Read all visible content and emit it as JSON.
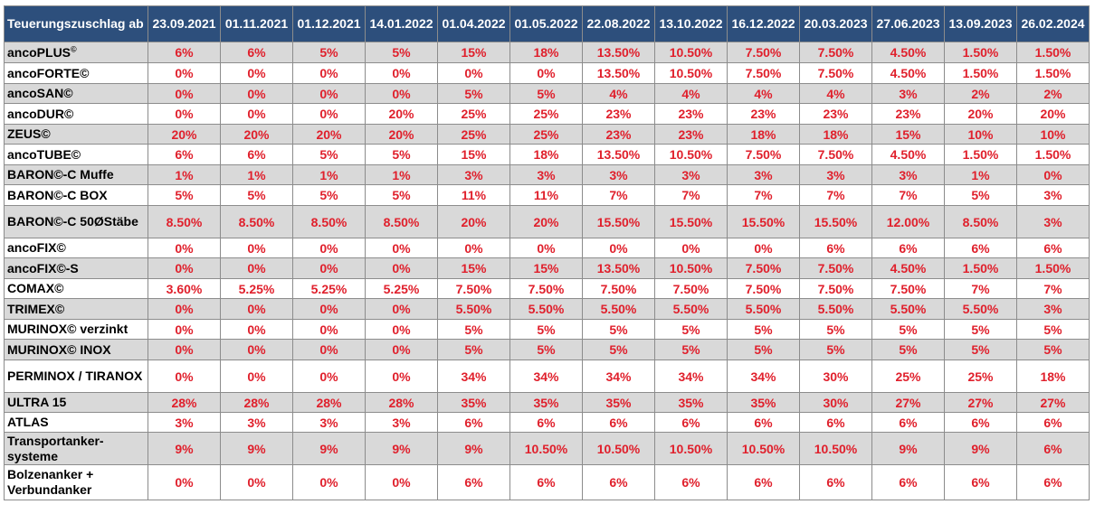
{
  "table": {
    "corner_label": "Teuerungszuschlag ab",
    "dates": [
      "23.09.2021",
      "01.11.2021",
      "01.12.2021",
      "14.01.2022",
      "01.04.2022",
      "01.05.2022",
      "22.08.2022",
      "13.10.2022",
      "16.12.2022",
      "20.03.2023",
      "27.06.2023",
      "13.09.2023",
      "26.02.2024"
    ],
    "rows": [
      {
        "product": "ancoPLUS",
        "mark": "©",
        "values": [
          "6%",
          "6%",
          "5%",
          "5%",
          "15%",
          "18%",
          "13.50%",
          "10.50%",
          "7.50%",
          "7.50%",
          "4.50%",
          "1.50%",
          "1.50%"
        ]
      },
      {
        "product": "ancoFORTE©",
        "values": [
          "0%",
          "0%",
          "0%",
          "0%",
          "0%",
          "0%",
          "13.50%",
          "10.50%",
          "7.50%",
          "7.50%",
          "4.50%",
          "1.50%",
          "1.50%"
        ]
      },
      {
        "product": "ancoSAN©",
        "values": [
          "0%",
          "0%",
          "0%",
          "0%",
          "5%",
          "5%",
          "4%",
          "4%",
          "4%",
          "4%",
          "3%",
          "2%",
          "2%"
        ]
      },
      {
        "product": "ancoDUR©",
        "values": [
          "0%",
          "0%",
          "0%",
          "20%",
          "25%",
          "25%",
          "23%",
          "23%",
          "23%",
          "23%",
          "23%",
          "20%",
          "20%"
        ]
      },
      {
        "product": "ZEUS©",
        "values": [
          "20%",
          "20%",
          "20%",
          "20%",
          "25%",
          "25%",
          "23%",
          "23%",
          "18%",
          "18%",
          "15%",
          "10%",
          "10%"
        ]
      },
      {
        "product": "ancoTUBE©",
        "values": [
          "6%",
          "6%",
          "5%",
          "5%",
          "15%",
          "18%",
          "13.50%",
          "10.50%",
          "7.50%",
          "7.50%",
          "4.50%",
          "1.50%",
          "1.50%"
        ]
      },
      {
        "product": "BARON©-C Muffe",
        "values": [
          "1%",
          "1%",
          "1%",
          "1%",
          "3%",
          "3%",
          "3%",
          "3%",
          "3%",
          "3%",
          "3%",
          "1%",
          "0%"
        ]
      },
      {
        "product": "BARON©-C BOX",
        "values": [
          "5%",
          "5%",
          "5%",
          "5%",
          "11%",
          "11%",
          "7%",
          "7%",
          "7%",
          "7%",
          "7%",
          "5%",
          "3%"
        ]
      },
      {
        "product": "BARON©-C 50ØStäbe",
        "values": [
          "8.50%",
          "8.50%",
          "8.50%",
          "8.50%",
          "20%",
          "20%",
          "15.50%",
          "15.50%",
          "15.50%",
          "15.50%",
          "12.00%",
          "8.50%",
          "3%"
        ]
      },
      {
        "product": "ancoFIX©",
        "values": [
          "0%",
          "0%",
          "0%",
          "0%",
          "0%",
          "0%",
          "0%",
          "0%",
          "0%",
          "6%",
          "6%",
          "6%",
          "6%"
        ]
      },
      {
        "product": "ancoFIX©-S",
        "values": [
          "0%",
          "0%",
          "0%",
          "0%",
          "15%",
          "15%",
          "13.50%",
          "10.50%",
          "7.50%",
          "7.50%",
          "4.50%",
          "1.50%",
          "1.50%"
        ]
      },
      {
        "product": "COMAX©",
        "values": [
          "3.60%",
          "5.25%",
          "5.25%",
          "5.25%",
          "7.50%",
          "7.50%",
          "7.50%",
          "7.50%",
          "7.50%",
          "7.50%",
          "7.50%",
          "7%",
          "7%"
        ]
      },
      {
        "product": "TRIMEX©",
        "values": [
          "0%",
          "0%",
          "0%",
          "0%",
          "5.50%",
          "5.50%",
          "5.50%",
          "5.50%",
          "5.50%",
          "5.50%",
          "5.50%",
          "5.50%",
          "3%"
        ]
      },
      {
        "product": "MURINOX© verzinkt",
        "values": [
          "0%",
          "0%",
          "0%",
          "0%",
          "5%",
          "5%",
          "5%",
          "5%",
          "5%",
          "5%",
          "5%",
          "5%",
          "5%"
        ]
      },
      {
        "product": "MURINOX© INOX",
        "values": [
          "0%",
          "0%",
          "0%",
          "0%",
          "5%",
          "5%",
          "5%",
          "5%",
          "5%",
          "5%",
          "5%",
          "5%",
          "5%"
        ]
      },
      {
        "product": "PERMINOX / TIRANOX",
        "values": [
          "0%",
          "0%",
          "0%",
          "0%",
          "34%",
          "34%",
          "34%",
          "34%",
          "34%",
          "30%",
          "25%",
          "25%",
          "18%"
        ]
      },
      {
        "product": "ULTRA 15",
        "values": [
          "28%",
          "28%",
          "28%",
          "28%",
          "35%",
          "35%",
          "35%",
          "35%",
          "35%",
          "30%",
          "27%",
          "27%",
          "27%"
        ]
      },
      {
        "product": "ATLAS",
        "values": [
          "3%",
          "3%",
          "3%",
          "3%",
          "6%",
          "6%",
          "6%",
          "6%",
          "6%",
          "6%",
          "6%",
          "6%",
          "6%"
        ]
      },
      {
        "product": "Transportanker-systeme",
        "values": [
          "9%",
          "9%",
          "9%",
          "9%",
          "9%",
          "10.50%",
          "10.50%",
          "10.50%",
          "10.50%",
          "10.50%",
          "9%",
          "9%",
          "6%"
        ]
      },
      {
        "product": "Bolzenanker + Verbundanker",
        "values": [
          "0%",
          "0%",
          "0%",
          "0%",
          "6%",
          "6%",
          "6%",
          "6%",
          "6%",
          "6%",
          "6%",
          "6%",
          "6%"
        ]
      }
    ]
  },
  "colors": {
    "header_bg": "#2d4f7c",
    "header_text": "#ffffff",
    "value_text": "#e0202c",
    "shaded_row": "#d9d9d9"
  }
}
